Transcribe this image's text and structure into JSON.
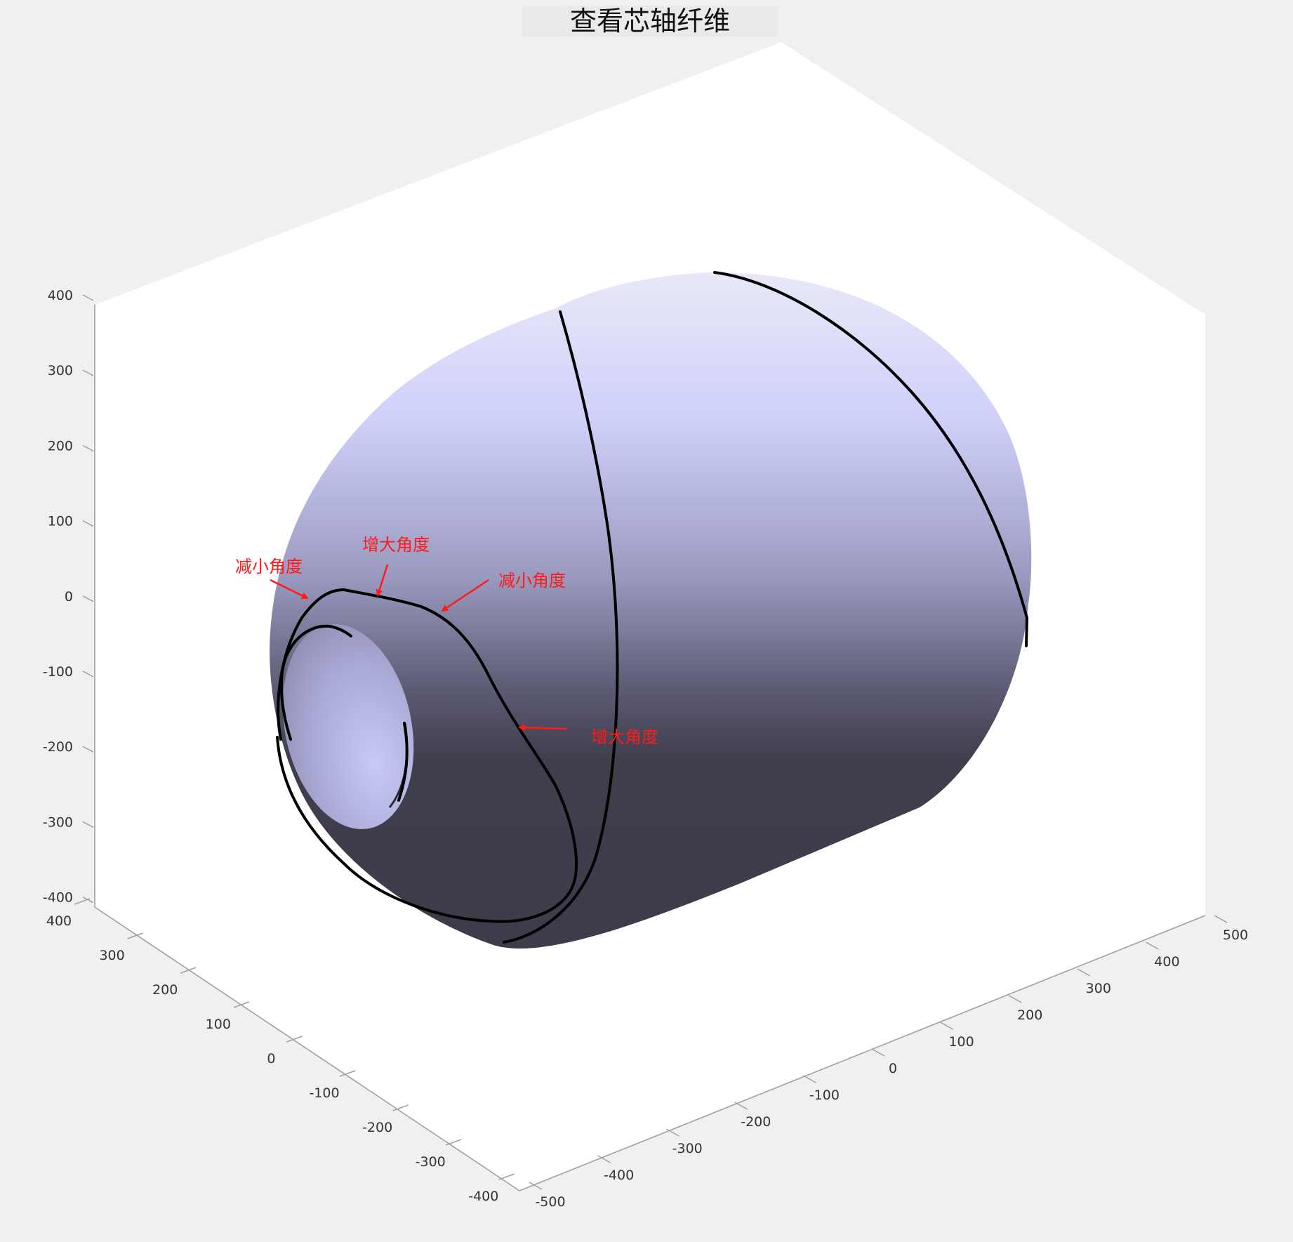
{
  "figure": {
    "title": "查看芯轴纤维",
    "background": "#f0f0f0"
  },
  "axes": {
    "box_fill": "#ffffff",
    "axis_color": "#a0a0a0",
    "z_ticks": [
      "400",
      "300",
      "200",
      "100",
      "0",
      "-100",
      "-200",
      "-300",
      "-400"
    ],
    "y_ticks": [
      "400",
      "300",
      "200",
      "100",
      "0",
      "-100",
      "-200",
      "-300",
      "-400"
    ],
    "x_ticks": [
      "-500",
      "-400",
      "-300",
      "-200",
      "-100",
      "0",
      "100",
      "200",
      "300",
      "400",
      "500"
    ]
  },
  "surface": {
    "name": "mandrel",
    "color_light": "#dcdcff",
    "color_dark": "#3f3e4d",
    "fiber_color": "#000000"
  },
  "annotations": {
    "color": "#ff1a1a",
    "items": [
      {
        "label": "减小角度"
      },
      {
        "label": "增大角度"
      },
      {
        "label": "减小角度"
      },
      {
        "label": "增大角度"
      }
    ]
  }
}
